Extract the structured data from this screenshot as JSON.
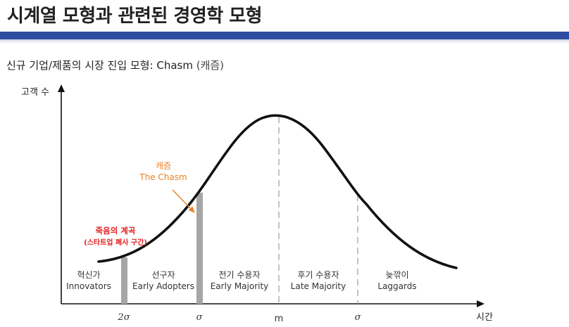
{
  "header": {
    "title": "시계열 모형과 관련된 경영학 모형",
    "subtitle_main": "신규 기업/제품의 시장 진입 모형: Chasm",
    "subtitle_paren": "(캐즘)"
  },
  "axes": {
    "y_label": "고객 수",
    "x_label": "시간",
    "x_ticks": [
      "2σ",
      "σ",
      "m",
      "σ"
    ]
  },
  "chasm_label": {
    "ko": "캐즘",
    "en": "The Chasm"
  },
  "valley_label": {
    "line1": "죽음의 계곡",
    "line2": "(스타트업 폐사 구간)"
  },
  "segments": [
    {
      "ko": "혁신가",
      "en": "Innovators"
    },
    {
      "ko": "선구자",
      "en": "Early Adopters"
    },
    {
      "ko": "전기 수용자",
      "en": "Early Majority"
    },
    {
      "ko": "후기 수용자",
      "en": "Late Majority"
    },
    {
      "ko": "늦깎이",
      "en": "Laggards"
    }
  ],
  "colors": {
    "title_bar": "#2e4d9e",
    "chasm_label": "#e8822a",
    "valley_label": "#e21f1f",
    "gap_bar": "#a6a6a6"
  }
}
